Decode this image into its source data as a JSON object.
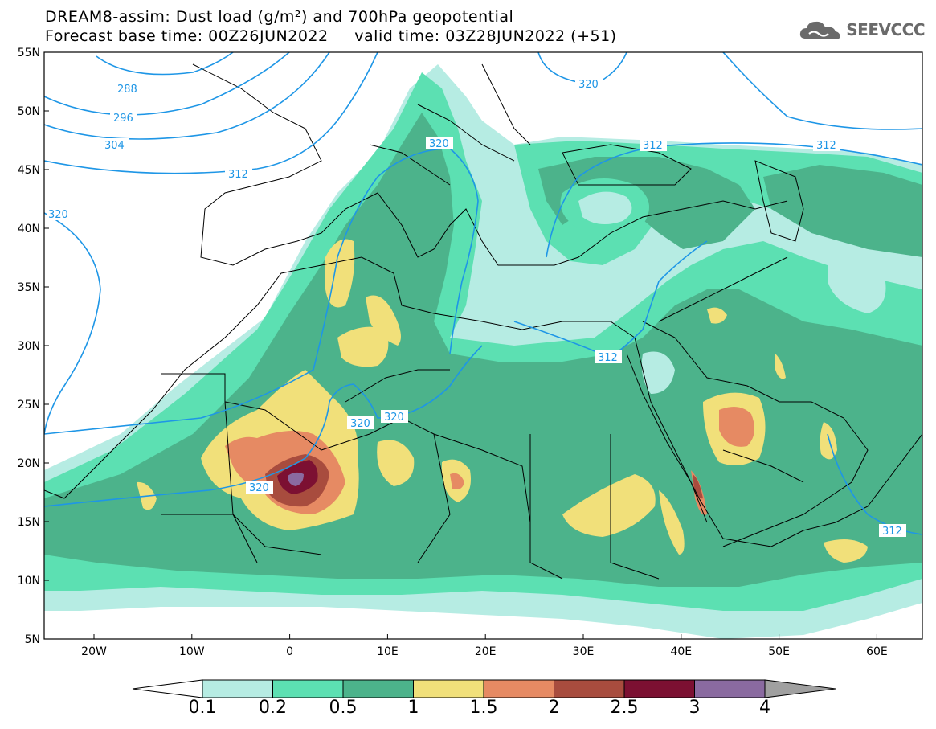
{
  "title_line1": "DREAM8-assim: Dust load (g/m²) and 700hPa geopotential",
  "title_line2": "Forecast base time: 00Z26JUN2022     valid time: 03Z28JUN2022 (+51)",
  "logo": {
    "text": "SEEVCCC",
    "icon": "cloud-logo-icon"
  },
  "map": {
    "lat_labels": [
      "55N",
      "50N",
      "45N",
      "40N",
      "35N",
      "30N",
      "25N",
      "20N",
      "15N",
      "10N",
      "5N"
    ],
    "lon_labels": [
      "20W",
      "10W",
      "0",
      "10E",
      "20E",
      "30E",
      "40E",
      "50E",
      "60E"
    ],
    "contour_labels": [
      "288",
      "296",
      "304",
      "312",
      "320",
      "320",
      "320",
      "320",
      "320",
      "320",
      "312",
      "312",
      "312",
      "312"
    ]
  },
  "colorbar": {
    "labels": [
      "0.1",
      "0.2",
      "0.5",
      "1",
      "1.5",
      "2",
      "2.5",
      "3",
      "4"
    ],
    "colors": [
      "#b6ece3",
      "#5ce0b2",
      "#4cb38b",
      "#f1e07a",
      "#e68a63",
      "#a84c3e",
      "#7c1032",
      "#8a6aa0"
    ],
    "low_color": "#ffffff",
    "high_color": "#a0a0a0"
  }
}
